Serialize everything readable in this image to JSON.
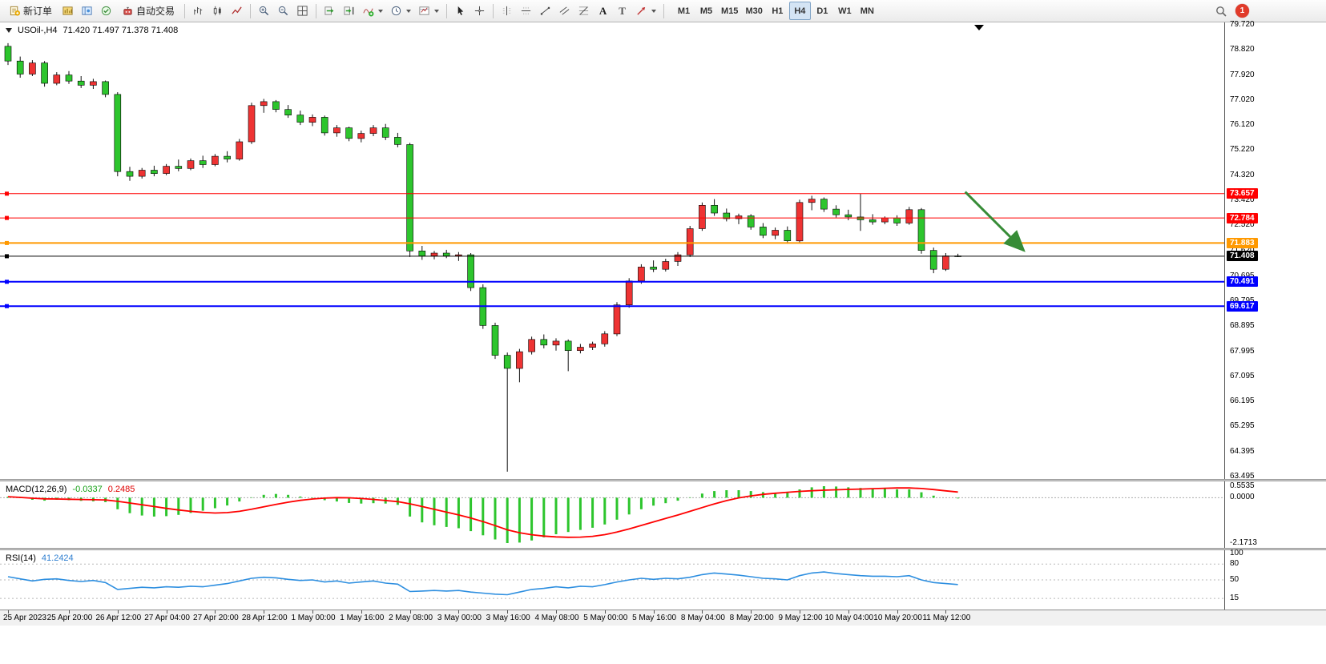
{
  "toolbar": {
    "new_order": "新订单",
    "auto_trading": "自动交易",
    "text_tool_glyph": "A",
    "label_tool_glyph": "T",
    "timeframes": [
      "M1",
      "M5",
      "M15",
      "M30",
      "H1",
      "H4",
      "D1",
      "W1",
      "MN"
    ],
    "active_timeframe": "H4",
    "notification_count": "1"
  },
  "chart": {
    "symbol_period": "USOil-,H4",
    "ohlc": "71.420 71.497 71.378 71.408"
  },
  "macd_panel": {
    "name": "MACD(12,26,9)",
    "main_value": "-0.0337",
    "signal_value": "0.2485"
  },
  "rsi_panel": {
    "name": "RSI(14)",
    "value": "41.2424"
  },
  "chart_data": {
    "type": "candlestick",
    "symbol": "USOil",
    "timeframe": "H4",
    "price_range": [
      63.495,
      79.72
    ],
    "price_ticks": [
      "79.720",
      "78.820",
      "77.920",
      "77.020",
      "76.120",
      "75.220",
      "74.320",
      "73.420",
      "72.520",
      "71.620",
      "70.695",
      "69.795",
      "68.895",
      "67.995",
      "67.095",
      "66.195",
      "65.295",
      "64.395",
      "63.495"
    ],
    "up_color": "#ee3333",
    "down_color": "#2dc52d",
    "wick_color": "#111111",
    "candles_ohlc": [
      [
        78.95,
        79.06,
        78.28,
        78.42
      ],
      [
        78.42,
        78.58,
        77.82,
        77.95
      ],
      [
        77.95,
        78.45,
        77.88,
        78.35
      ],
      [
        78.35,
        78.42,
        77.5,
        77.62
      ],
      [
        77.62,
        78.02,
        77.55,
        77.92
      ],
      [
        77.92,
        78.06,
        77.6,
        77.7
      ],
      [
        77.7,
        77.88,
        77.45,
        77.55
      ],
      [
        77.55,
        77.78,
        77.42,
        77.68
      ],
      [
        77.68,
        77.72,
        77.12,
        77.22
      ],
      [
        77.22,
        77.3,
        74.28,
        74.45
      ],
      [
        74.45,
        74.62,
        74.12,
        74.28
      ],
      [
        74.28,
        74.58,
        74.2,
        74.5
      ],
      [
        74.5,
        74.66,
        74.28,
        74.38
      ],
      [
        74.38,
        74.72,
        74.32,
        74.64
      ],
      [
        74.64,
        74.88,
        74.46,
        74.56
      ],
      [
        74.56,
        74.92,
        74.5,
        74.84
      ],
      [
        74.84,
        75.02,
        74.58,
        74.7
      ],
      [
        74.7,
        75.08,
        74.64,
        75.0
      ],
      [
        75.0,
        75.18,
        74.78,
        74.9
      ],
      [
        74.9,
        75.62,
        74.84,
        75.52
      ],
      [
        75.52,
        76.92,
        75.44,
        76.82
      ],
      [
        76.82,
        77.06,
        76.56,
        76.96
      ],
      [
        76.96,
        77.02,
        76.58,
        76.68
      ],
      [
        76.68,
        76.84,
        76.38,
        76.48
      ],
      [
        76.48,
        76.64,
        76.12,
        76.22
      ],
      [
        76.22,
        76.5,
        76.08,
        76.4
      ],
      [
        76.4,
        76.46,
        75.74,
        75.84
      ],
      [
        75.84,
        76.12,
        75.7,
        76.02
      ],
      [
        76.02,
        76.06,
        75.54,
        75.64
      ],
      [
        75.64,
        75.92,
        75.5,
        75.82
      ],
      [
        75.82,
        76.12,
        75.72,
        76.02
      ],
      [
        76.02,
        76.16,
        75.58,
        75.68
      ],
      [
        75.68,
        75.84,
        75.32,
        75.42
      ],
      [
        75.42,
        75.48,
        71.38,
        71.6
      ],
      [
        71.6,
        71.78,
        71.28,
        71.42
      ],
      [
        71.42,
        71.6,
        71.3,
        71.52
      ],
      [
        71.52,
        71.64,
        71.34,
        71.42
      ],
      [
        71.42,
        71.56,
        71.24,
        71.46
      ],
      [
        71.46,
        71.52,
        70.16,
        70.28
      ],
      [
        70.28,
        70.4,
        68.8,
        68.92
      ],
      [
        68.92,
        69.02,
        67.72,
        67.85
      ],
      [
        67.85,
        67.95,
        63.67,
        67.38
      ],
      [
        67.38,
        68.08,
        66.88,
        67.98
      ],
      [
        67.98,
        68.52,
        67.88,
        68.42
      ],
      [
        68.42,
        68.6,
        68.1,
        68.22
      ],
      [
        68.22,
        68.46,
        68.02,
        68.36
      ],
      [
        68.36,
        68.42,
        67.28,
        68.02
      ],
      [
        68.02,
        68.26,
        67.92,
        68.14
      ],
      [
        68.14,
        68.34,
        68.04,
        68.26
      ],
      [
        68.26,
        68.72,
        68.16,
        68.62
      ],
      [
        68.62,
        69.76,
        68.54,
        69.66
      ],
      [
        69.66,
        70.62,
        69.56,
        70.52
      ],
      [
        70.52,
        71.12,
        70.42,
        71.02
      ],
      [
        71.02,
        71.26,
        70.84,
        70.94
      ],
      [
        70.94,
        71.32,
        70.86,
        71.22
      ],
      [
        71.22,
        71.56,
        71.06,
        71.46
      ],
      [
        71.46,
        72.5,
        71.38,
        72.4
      ],
      [
        72.4,
        73.34,
        72.32,
        73.24
      ],
      [
        73.24,
        73.46,
        72.86,
        72.96
      ],
      [
        72.96,
        73.12,
        72.66,
        72.76
      ],
      [
        72.76,
        72.94,
        72.56,
        72.86
      ],
      [
        72.86,
        72.92,
        72.36,
        72.46
      ],
      [
        72.46,
        72.6,
        72.06,
        72.16
      ],
      [
        72.16,
        72.44,
        72.02,
        72.34
      ],
      [
        72.34,
        72.48,
        71.86,
        71.96
      ],
      [
        71.96,
        73.44,
        71.9,
        73.34
      ],
      [
        73.34,
        73.58,
        73.06,
        73.46
      ],
      [
        73.46,
        73.52,
        73.0,
        73.1
      ],
      [
        73.1,
        73.24,
        72.8,
        72.9
      ],
      [
        72.9,
        73.08,
        72.7,
        72.82
      ],
      [
        72.82,
        73.66,
        72.32,
        72.72
      ],
      [
        72.72,
        72.92,
        72.54,
        72.64
      ],
      [
        72.64,
        72.84,
        72.56,
        72.78
      ],
      [
        72.78,
        72.88,
        72.5,
        72.6
      ],
      [
        72.6,
        73.18,
        72.54,
        73.08
      ],
      [
        73.08,
        73.14,
        71.5,
        71.62
      ],
      [
        71.62,
        71.72,
        70.8,
        70.94
      ],
      [
        70.94,
        71.52,
        70.88,
        71.42
      ],
      [
        71.42,
        71.497,
        71.378,
        71.408
      ]
    ],
    "time_labels": [
      {
        "text": "25 Apr 2023",
        "bar": 0
      },
      {
        "text": "25 Apr 20:00",
        "bar": 5
      },
      {
        "text": "26 Apr 12:00",
        "bar": 9
      },
      {
        "text": "27 Apr 04:00",
        "bar": 13
      },
      {
        "text": "27 Apr 20:00",
        "bar": 17
      },
      {
        "text": "28 Apr 12:00",
        "bar": 21
      },
      {
        "text": "1 May 00:00",
        "bar": 25
      },
      {
        "text": "1 May 16:00",
        "bar": 29
      },
      {
        "text": "2 May 08:00",
        "bar": 33
      },
      {
        "text": "3 May 00:00",
        "bar": 37
      },
      {
        "text": "3 May 16:00",
        "bar": 41
      },
      {
        "text": "4 May 08:00",
        "bar": 45
      },
      {
        "text": "5 May 00:00",
        "bar": 49
      },
      {
        "text": "5 May 16:00",
        "bar": 53
      },
      {
        "text": "8 May 04:00",
        "bar": 57
      },
      {
        "text": "8 May 20:00",
        "bar": 61
      },
      {
        "text": "9 May 12:00",
        "bar": 65
      },
      {
        "text": "10 May 04:00",
        "bar": 69
      },
      {
        "text": "10 May 20:00",
        "bar": 73
      },
      {
        "text": "11 May 12:00",
        "bar": 77
      }
    ],
    "hlines": [
      {
        "price": 73.657,
        "label": "73.657",
        "color": "#ff0000",
        "width": 1
      },
      {
        "price": 72.784,
        "label": "72.784",
        "color": "#ff0000",
        "width": 1
      },
      {
        "price": 71.883,
        "label": "71.883",
        "color": "#ff9900",
        "width": 2
      },
      {
        "price": 71.408,
        "label": "71.408",
        "color": "#000000",
        "width": 1
      },
      {
        "price": 70.491,
        "label": "70.491",
        "color": "#0000ff",
        "width": 2
      },
      {
        "price": 69.617,
        "label": "69.617",
        "color": "#0000ff",
        "width": 2
      }
    ],
    "arrow_annotation": {
      "from_bar": 78.6,
      "from_price": 73.72,
      "to_bar": 83.4,
      "to_price": 71.62,
      "color": "#378c37"
    },
    "macd": {
      "label": "MACD(12,26,9)",
      "signal_period": 9,
      "histogram_color": "#2dc52d",
      "signal_color": "#ff0000",
      "range": [
        -2.1713,
        0.5535
      ],
      "scale": [
        "0.5535",
        "0.0000",
        "-2.1713"
      ],
      "main": [
        0.05,
        -0.02,
        -0.1,
        -0.14,
        -0.1,
        -0.12,
        -0.15,
        -0.17,
        -0.21,
        -0.55,
        -0.74,
        -0.85,
        -0.9,
        -0.88,
        -0.82,
        -0.73,
        -0.62,
        -0.5,
        -0.37,
        -0.18,
        0.02,
        0.14,
        0.18,
        0.14,
        0.06,
        -0.02,
        -0.12,
        -0.18,
        -0.25,
        -0.28,
        -0.26,
        -0.28,
        -0.34,
        -0.9,
        -1.18,
        -1.32,
        -1.4,
        -1.46,
        -1.6,
        -1.8,
        -2.0,
        -2.1713,
        -2.15,
        -2.05,
        -1.9,
        -1.75,
        -1.64,
        -1.54,
        -1.44,
        -1.28,
        -1.05,
        -0.8,
        -0.55,
        -0.38,
        -0.26,
        -0.14,
        0.02,
        0.2,
        0.32,
        0.36,
        0.36,
        0.32,
        0.27,
        0.24,
        0.26,
        0.4,
        0.5,
        0.5535,
        0.54,
        0.5,
        0.47,
        0.44,
        0.42,
        0.4,
        0.4,
        0.26,
        0.1,
        0.0,
        -0.0337
      ]
    },
    "rsi": {
      "label": "RSI(14)",
      "period": 14,
      "line_color": "#2e8fe0",
      "range": [
        0,
        100
      ],
      "levels": [
        80,
        50,
        15
      ],
      "scale": [
        "100",
        "80",
        "50",
        "15"
      ],
      "values": [
        56,
        52,
        48,
        51,
        52,
        49,
        47,
        49,
        45,
        32,
        34,
        36,
        35,
        37,
        36,
        38,
        37,
        40,
        43,
        48,
        53,
        55,
        54,
        51,
        49,
        50,
        46,
        48,
        44,
        46,
        48,
        44,
        42,
        28,
        29,
        30,
        29,
        30,
        27,
        25,
        23,
        22,
        27,
        32,
        34,
        37,
        35,
        38,
        37,
        41,
        46,
        50,
        53,
        51,
        53,
        52,
        55,
        60,
        63,
        61,
        59,
        56,
        53,
        52,
        50,
        58,
        63,
        65,
        62,
        60,
        58,
        57,
        57,
        56,
        58,
        50,
        45,
        43,
        41.2424
      ]
    }
  }
}
